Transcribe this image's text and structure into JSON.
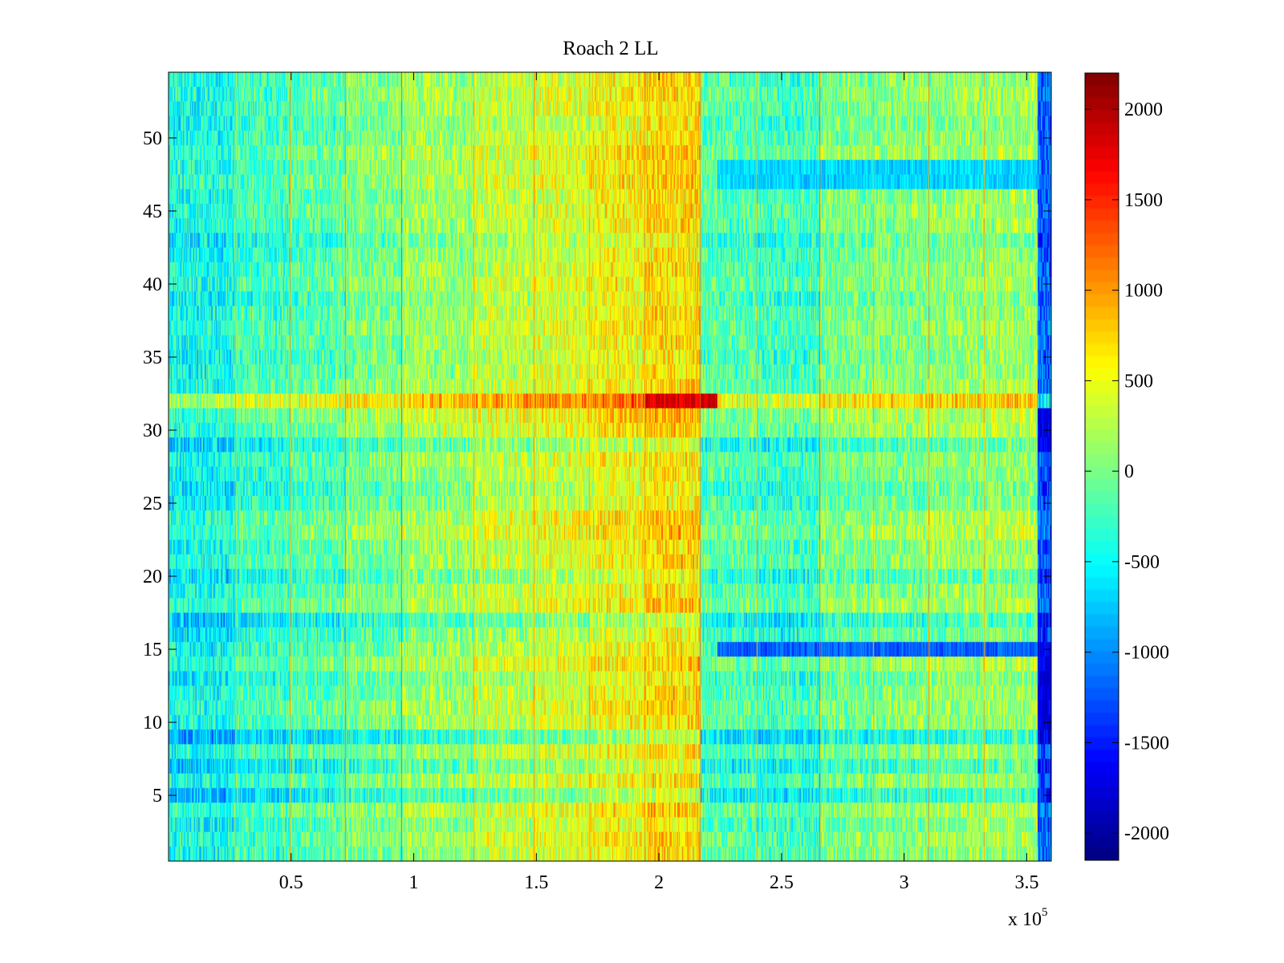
{
  "chart_data": {
    "type": "heatmap",
    "title": "Roach 2 LL",
    "xlabel": "",
    "ylabel": "",
    "x_exponent_label": "x 10",
    "x_exponent_power": "5",
    "xlim": [
      0,
      3.6
    ],
    "ylim": [
      0.5,
      54.5
    ],
    "x_ticks": [
      0.5,
      1,
      1.5,
      2,
      2.5,
      3,
      3.5
    ],
    "x_tick_labels": [
      "0.5",
      "1",
      "1.5",
      "2",
      "2.5",
      "3",
      "3.5"
    ],
    "y_ticks": [
      5,
      10,
      15,
      20,
      25,
      30,
      35,
      40,
      45,
      50
    ],
    "y_tick_labels": [
      "5",
      "10",
      "15",
      "20",
      "25",
      "30",
      "35",
      "40",
      "45",
      "50"
    ],
    "rows": 54,
    "colorbar": {
      "clim": [
        -2150,
        2200
      ],
      "ticks": [
        -2000,
        -1500,
        -1000,
        -500,
        0,
        500,
        1000,
        1500,
        2000
      ],
      "tick_labels": [
        "-2000",
        "-1500",
        "-1000",
        "-500",
        "0",
        "500",
        "1000",
        "1500",
        "2000"
      ],
      "colormap": "jet"
    },
    "segment_boundaries": [
      0,
      0.27,
      0.495,
      0.72,
      0.95,
      1.245,
      1.49,
      1.715,
      1.94,
      2.165,
      2.4,
      2.655,
      2.875,
      3.1,
      3.325,
      3.545,
      3.6
    ],
    "segment_base_values": [
      -450,
      -250,
      -150,
      0,
      150,
      300,
      400,
      550,
      700,
      -150,
      -250,
      0,
      50,
      100,
      150,
      -1200
    ],
    "row_offsets": [
      0,
      50,
      -50,
      100,
      -350,
      0,
      -300,
      0,
      -450,
      0,
      50,
      0,
      -100,
      100,
      -50,
      -150,
      -350,
      100,
      0,
      -200,
      50,
      0,
      150,
      100,
      -100,
      -150,
      -50,
      0,
      -250,
      100,
      200,
      650,
      50,
      0,
      -50,
      0,
      50,
      0,
      -100,
      50,
      0,
      -50,
      -150,
      0,
      50,
      0,
      100,
      50,
      100,
      0,
      -50,
      0,
      50,
      0
    ],
    "highlights": [
      {
        "x_range": [
          1.94,
          2.24
        ],
        "rows": [
          32
        ],
        "value": 1800
      },
      {
        "x_range": [
          2.24,
          3.545
        ],
        "rows": [
          15
        ],
        "value": -1200
      },
      {
        "x_range": [
          3.545,
          3.6
        ],
        "rows": [
          10,
          11,
          12,
          13,
          14,
          15,
          29,
          30,
          31
        ],
        "value": -1700
      },
      {
        "x_range": [
          2.24,
          3.545
        ],
        "rows": [
          47,
          48
        ],
        "value": -700
      }
    ],
    "vertical_lines": [
      {
        "x": 0.27,
        "value": 900
      },
      {
        "x": 0.495,
        "value": 1000
      },
      {
        "x": 0.72,
        "value": 1100
      },
      {
        "x": 0.95,
        "value": -900
      },
      {
        "x": 1.245,
        "value": 900
      },
      {
        "x": 1.49,
        "value": 1000
      },
      {
        "x": 1.715,
        "value": 900
      },
      {
        "x": 1.94,
        "value": 1000
      },
      {
        "x": 2.165,
        "value": 1100
      },
      {
        "x": 2.4,
        "value": 900
      },
      {
        "x": 2.655,
        "value": 1200
      },
      {
        "x": 2.875,
        "value": 900
      },
      {
        "x": 3.1,
        "value": 1000
      },
      {
        "x": 3.325,
        "value": 900
      }
    ]
  }
}
